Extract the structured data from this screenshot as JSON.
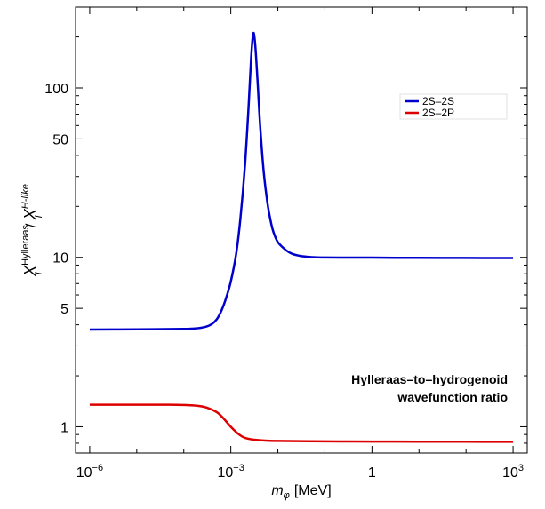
{
  "chart_data": {
    "type": "line",
    "title": "",
    "xlabel": {
      "symbol": "m",
      "subscript": "φ",
      "unit": "[MeV]"
    },
    "ylabel": {
      "base": "X",
      "sub": "i",
      "num_sup": "Hylleraas",
      "sep": " / ",
      "den_sup": "H-like"
    },
    "xscale": "log",
    "yscale": "log",
    "xlim": [
      5e-07,
      2000
    ],
    "ylim": [
      0.7,
      300
    ],
    "x_ticks": [
      {
        "value": 1e-06,
        "base": "10",
        "exp": "−6"
      },
      {
        "value": 0.001,
        "base": "10",
        "exp": "−3"
      },
      {
        "value": 1,
        "base": "1",
        "exp": ""
      },
      {
        "value": 1000,
        "base": "10",
        "exp": "3"
      }
    ],
    "y_ticks": [
      {
        "value": 1,
        "label": "1"
      },
      {
        "value": 5,
        "label": "5"
      },
      {
        "value": 10,
        "label": "10"
      },
      {
        "value": 50,
        "label": "50"
      },
      {
        "value": 100,
        "label": "100"
      }
    ],
    "grid": false,
    "legend": {
      "position": "top-right"
    },
    "annotation": [
      "Hylleraas–to–hydrogenoid",
      "wavefunction ratio"
    ],
    "series": [
      {
        "name": "2S–2S",
        "color": "#0000cc",
        "points": [
          [
            1e-06,
            3.75
          ],
          [
            1e-05,
            3.76
          ],
          [
            0.0001,
            3.78
          ],
          [
            0.0002,
            3.82
          ],
          [
            0.0003,
            3.9
          ],
          [
            0.0004,
            4.05
          ],
          [
            0.0005,
            4.3
          ],
          [
            0.0006,
            4.7
          ],
          [
            0.0007,
            5.2
          ],
          [
            0.0008,
            5.8
          ],
          [
            0.001,
            7.2
          ],
          [
            0.0013,
            10.5
          ],
          [
            0.0016,
            17
          ],
          [
            0.002,
            35
          ],
          [
            0.0024,
            80
          ],
          [
            0.0027,
            150
          ],
          [
            0.003,
            210
          ],
          [
            0.0033,
            180
          ],
          [
            0.0037,
            110
          ],
          [
            0.0042,
            60
          ],
          [
            0.005,
            32
          ],
          [
            0.006,
            21
          ],
          [
            0.007,
            16.5
          ],
          [
            0.008,
            14.2
          ],
          [
            0.01,
            12.3
          ],
          [
            0.015,
            11.0
          ],
          [
            0.02,
            10.5
          ],
          [
            0.03,
            10.2
          ],
          [
            0.05,
            10.05
          ],
          [
            0.1,
            9.98
          ],
          [
            1,
            9.96
          ],
          [
            10,
            9.93
          ],
          [
            100,
            9.92
          ],
          [
            1000,
            9.9
          ]
        ]
      },
      {
        "name": "2S–2P",
        "color": "#dd0000",
        "points": [
          [
            1e-06,
            1.35
          ],
          [
            1e-05,
            1.35
          ],
          [
            5e-05,
            1.35
          ],
          [
            0.0001,
            1.345
          ],
          [
            0.0002,
            1.33
          ],
          [
            0.0003,
            1.3
          ],
          [
            0.0005,
            1.22
          ],
          [
            0.0007,
            1.12
          ],
          [
            0.001,
            1.0
          ],
          [
            0.0015,
            0.9
          ],
          [
            0.002,
            0.86
          ],
          [
            0.003,
            0.84
          ],
          [
            0.005,
            0.83
          ],
          [
            0.01,
            0.825
          ],
          [
            0.1,
            0.82
          ],
          [
            1,
            0.818
          ],
          [
            10,
            0.817
          ],
          [
            100,
            0.816
          ],
          [
            1000,
            0.815
          ]
        ]
      }
    ]
  }
}
